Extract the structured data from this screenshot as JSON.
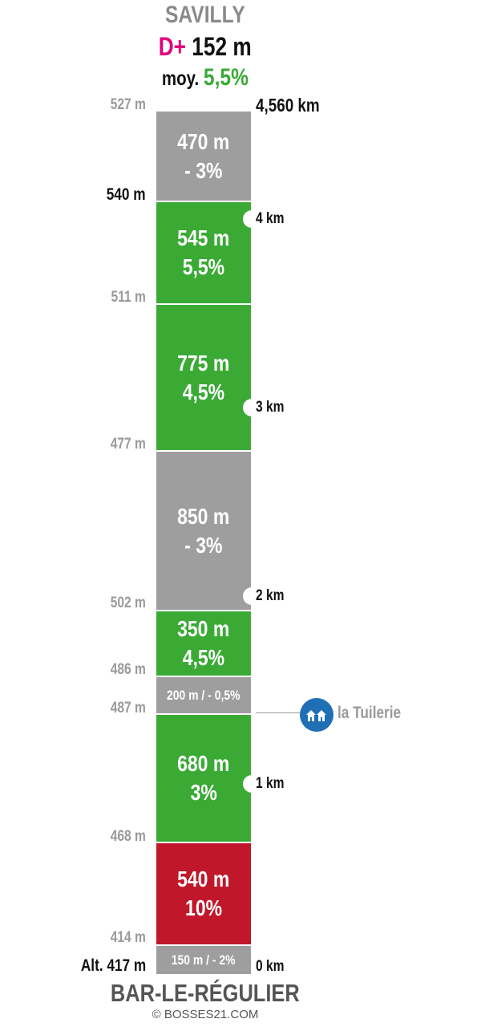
{
  "header": {
    "destination": "SAVILLY",
    "dplus_label": "D+",
    "dplus_value": "152 m",
    "avg_label": "moy.",
    "avg_value": "5,5%"
  },
  "segments": [
    {
      "line1": "470 m",
      "line2": "- 3%",
      "color": "#9e9e9e"
    },
    {
      "line1": "545 m",
      "line2": "5,5%",
      "color": "#3aaa35"
    },
    {
      "line1": "775 m",
      "line2": "4,5%",
      "color": "#3aaa35"
    },
    {
      "line1": "850 m",
      "line2": "- 3%",
      "color": "#9e9e9e"
    },
    {
      "line1": "350 m",
      "line2": "4,5%",
      "color": "#3aaa35"
    },
    {
      "line1": "200 m / - 0,5%",
      "color": "#9e9e9e"
    },
    {
      "line1": "680 m",
      "line2": "3%",
      "color": "#3aaa35"
    },
    {
      "line1": "540 m",
      "line2": "10%",
      "color": "#c0172a"
    },
    {
      "line1": "150 m / - 2%",
      "color": "#9e9e9e"
    }
  ],
  "altitudes": [
    "527 m",
    "540 m",
    "511 m",
    "477 m",
    "502 m",
    "486 m",
    "487 m",
    "468 m",
    "414 m",
    "Alt. 417 m"
  ],
  "distances": [
    "4,560 km",
    "4 km",
    "3 km",
    "2 km",
    "1 km",
    "0 km"
  ],
  "poi": {
    "label": "la Tuilerie",
    "icon": "house-icon"
  },
  "footer": {
    "start": "BAR-LE-RÉGULIER",
    "copyright": "© BOSSES21.COM"
  }
}
